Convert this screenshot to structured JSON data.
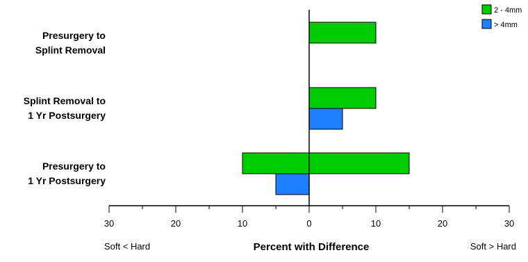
{
  "chart_data": {
    "type": "bar",
    "orientation": "horizontal",
    "categories": [
      [
        "Presurgery to",
        "Splint Removal"
      ],
      [
        "Splint Removal to",
        "1 Yr Postsurgery"
      ],
      [
        "Presurgery to",
        "1 Yr Postsurgery"
      ]
    ],
    "series": [
      {
        "name": "2 - 4mm",
        "color": "#00cc00",
        "segments": [
          [
            [
              0,
              10
            ]
          ],
          [
            [
              0,
              10
            ]
          ],
          [
            [
              -10,
              15
            ]
          ]
        ]
      },
      {
        "name": "> 4mm",
        "color": "#1e7fff",
        "segments": [
          [],
          [
            [
              0,
              5
            ]
          ],
          [
            [
              -5,
              0
            ]
          ]
        ]
      }
    ],
    "xlim": [
      -30,
      30
    ],
    "x_ticks": [
      -30,
      -20,
      -10,
      0,
      10,
      20,
      30
    ],
    "x_tick_labels": [
      "30",
      "20",
      "10",
      "0",
      "10",
      "20",
      "30"
    ],
    "xlabel": "Percent with Difference",
    "left_direction_label": "Soft < Hard",
    "right_direction_label": "Soft > Hard",
    "legend_position": "top-right",
    "grid": false
  }
}
